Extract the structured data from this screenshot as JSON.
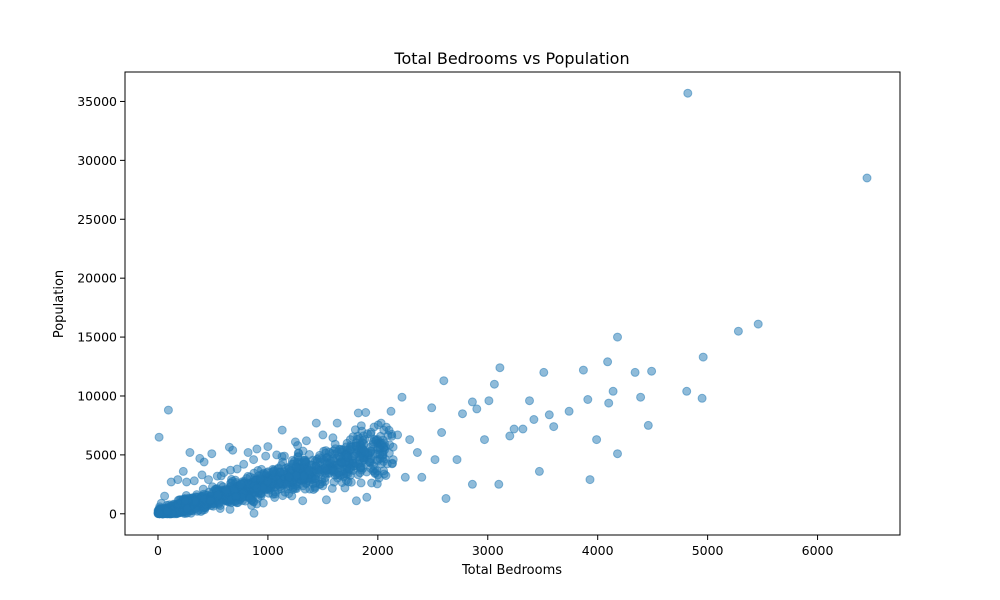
{
  "chart_data": {
    "type": "scatter",
    "title": "Total Bedrooms vs Population",
    "xlabel": "Total Bedrooms",
    "ylabel": "Population",
    "xlim": [
      -300,
      6750
    ],
    "ylim": [
      -1800,
      37500
    ],
    "xticks": [
      0,
      1000,
      2000,
      3000,
      4000,
      5000,
      6000
    ],
    "yticks": [
      0,
      5000,
      10000,
      15000,
      20000,
      25000,
      30000,
      35000
    ],
    "grid": false,
    "marker_color": "#1f77b4",
    "marker_alpha": 0.5,
    "points": [
      [
        10,
        6500
      ],
      [
        95,
        8800
      ],
      [
        230,
        3600
      ],
      [
        290,
        5200
      ],
      [
        380,
        4700
      ],
      [
        420,
        4400
      ],
      [
        490,
        5100
      ],
      [
        650,
        5650
      ],
      [
        680,
        5400
      ],
      [
        820,
        5200
      ],
      [
        900,
        5500
      ],
      [
        1000,
        5700
      ],
      [
        1130,
        7100
      ],
      [
        1250,
        6100
      ],
      [
        1440,
        7700
      ],
      [
        1630,
        7700
      ],
      [
        1890,
        8600
      ],
      [
        2030,
        7700
      ],
      [
        2120,
        8700
      ],
      [
        2220,
        9900
      ],
      [
        2490,
        9000
      ],
      [
        2600,
        11300
      ],
      [
        2860,
        9500
      ],
      [
        3010,
        9600
      ],
      [
        3060,
        11000
      ],
      [
        3110,
        12400
      ],
      [
        3240,
        7200
      ],
      [
        3380,
        9600
      ],
      [
        3510,
        12000
      ],
      [
        3870,
        12200
      ],
      [
        3910,
        9700
      ],
      [
        4090,
        12900
      ],
      [
        4180,
        15000
      ],
      [
        4340,
        12000
      ],
      [
        4490,
        12100
      ],
      [
        4820,
        35700
      ],
      [
        4810,
        10400
      ],
      [
        4960,
        13300
      ],
      [
        5280,
        15500
      ],
      [
        5460,
        16100
      ],
      [
        6450,
        28500
      ],
      [
        3930,
        2900
      ],
      [
        4180,
        5100
      ],
      [
        4460,
        7500
      ],
      [
        3990,
        6300
      ],
      [
        3470,
        3600
      ],
      [
        3100,
        2500
      ],
      [
        2860,
        2500
      ],
      [
        2620,
        1300
      ],
      [
        2720,
        4600
      ],
      [
        2400,
        3100
      ],
      [
        3320,
        7200
      ],
      [
        3600,
        7400
      ],
      [
        3740,
        8700
      ],
      [
        3560,
        8400
      ],
      [
        4140,
        10400
      ],
      [
        4100,
        9400
      ],
      [
        4390,
        9900
      ],
      [
        4950,
        9800
      ],
      [
        3420,
        8000
      ],
      [
        3200,
        6600
      ],
      [
        2970,
        6300
      ],
      [
        2900,
        8900
      ],
      [
        2770,
        8500
      ],
      [
        2580,
        6900
      ],
      [
        2520,
        4600
      ],
      [
        2360,
        5200
      ],
      [
        2290,
        6300
      ],
      [
        2180,
        6700
      ],
      [
        2140,
        4600
      ],
      [
        2060,
        6000
      ],
      [
        2000,
        5600
      ],
      [
        1960,
        4100
      ],
      [
        1900,
        1400
      ],
      [
        2000,
        3300
      ],
      [
        2250,
        3100
      ],
      [
        1700,
        2200
      ],
      [
        1750,
        6300
      ],
      [
        1500,
        6700
      ],
      [
        1350,
        6200
      ],
      [
        1270,
        5800
      ],
      [
        1150,
        4900
      ],
      [
        1080,
        5000
      ],
      [
        980,
        4900
      ],
      [
        870,
        4600
      ],
      [
        780,
        4200
      ],
      [
        720,
        3800
      ],
      [
        660,
        3700
      ],
      [
        600,
        3500
      ],
      [
        540,
        3200
      ],
      [
        460,
        2900
      ],
      [
        400,
        3300
      ],
      [
        330,
        2800
      ],
      [
        260,
        2700
      ],
      [
        180,
        2900
      ],
      [
        120,
        2700
      ],
      [
        60,
        1500
      ],
      [
        30,
        900
      ],
      [
        80,
        200
      ],
      [
        15,
        50
      ]
    ]
  }
}
